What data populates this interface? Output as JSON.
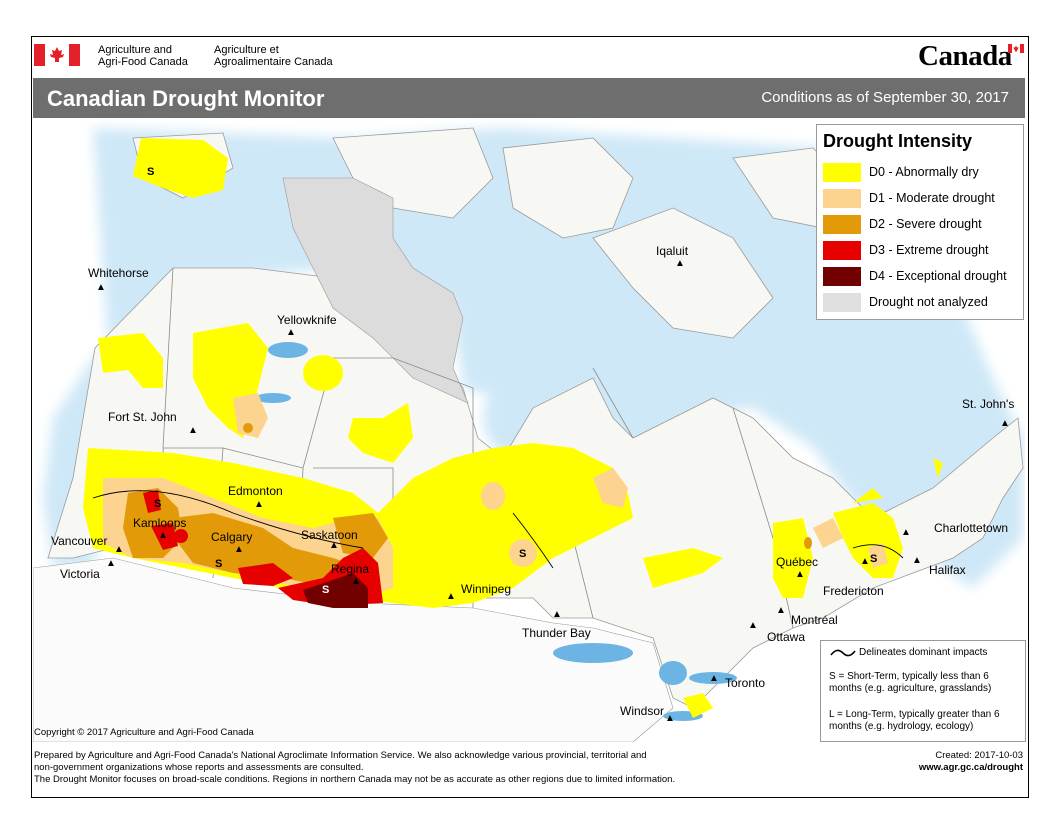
{
  "header": {
    "org_en_line1": "Agriculture and",
    "org_en_line2": "Agri-Food Canada",
    "org_fr_line1": "Agriculture et",
    "org_fr_line2": "Agroalimentaire Canada",
    "wordmark": "Canada"
  },
  "title": "Canadian Drought Monitor",
  "conditions": "Conditions as of September 30, 2017",
  "legend": {
    "title": "Drought Intensity",
    "items": [
      {
        "label": "D0 - Abnormally dry",
        "color": "#ffff00"
      },
      {
        "label": "D1 - Moderate drought",
        "color": "#fcd38f"
      },
      {
        "label": "D2 - Severe drought",
        "color": "#e39a09"
      },
      {
        "label": "D3 - Extreme drought",
        "color": "#e60000"
      },
      {
        "label": "D4 - Exceptional drought",
        "color": "#730000"
      },
      {
        "label": "Drought not analyzed",
        "color": "#e0e0e0"
      }
    ]
  },
  "impacts": {
    "line1": "Delineates dominant impacts",
    "short_term": "S = Short-Term, typically less than 6 months (e.g. agriculture, grasslands)",
    "long_term": "L = Long-Term, typically greater than 6 months (e.g. hydrology, ecology)"
  },
  "cities": {
    "whitehorse": "Whitehorse",
    "yellowknife": "Yellowknife",
    "iqaluit": "Iqaluit",
    "fort_st_john": "Fort St. John",
    "edmonton": "Edmonton",
    "kamloops": "Kamloops",
    "calgary": "Calgary",
    "vancouver": "Vancouver",
    "victoria": "Victoria",
    "saskatoon": "Saskatoon",
    "regina": "Regina",
    "winnipeg": "Winnipeg",
    "thunder_bay": "Thunder Bay",
    "quebec": "Québec",
    "montreal": "Montréal",
    "ottawa": "Ottawa",
    "toronto": "Toronto",
    "windsor": "Windsor",
    "fredericton": "Fredericton",
    "halifax": "Halifax",
    "charlottetown": "Charlottetown",
    "st_johns": "St. John's"
  },
  "impact_symbol": "S",
  "copyright": "Copyright © 2017 Agriculture and Agri-Food Canada",
  "footer": {
    "line1": "Prepared by Agriculture and Agri-Food Canada's National Agroclimate Information Service.  We also acknowledge various provincial, territorial and",
    "line2": "non-government organizations whose reports and assessments are consulted.",
    "line3": "The Drought Monitor focuses on broad-scale conditions.  Regions in northern Canada may not be as accurate as other regions due to limited information."
  },
  "created": "Created: 2017-10-03",
  "url": "www.agr.gc.ca/drought"
}
